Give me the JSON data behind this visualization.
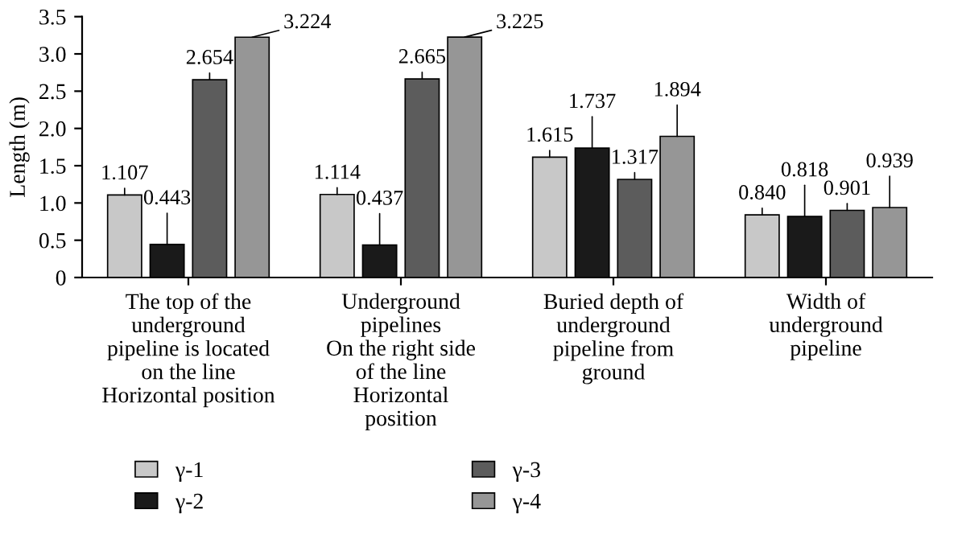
{
  "chart_data": {
    "type": "bar",
    "ylabel": "Length (m)",
    "categories": [
      "The top of the\nunderground\npipeline is located\non the line\nHorizontal position",
      "Underground\npipelines\nOn the right side\nof the line\nHorizontal\nposition",
      "Buried depth of\nunderground\npipeline from\nground",
      "Width of\nunderground\npipeline"
    ],
    "series": [
      {
        "name": "γ-1",
        "color": "#c8c8c8",
        "values": [
          1.107,
          1.114,
          1.615,
          0.84
        ],
        "value_labels": [
          "1.107",
          "1.114",
          "1.615",
          "0.840"
        ]
      },
      {
        "name": "γ-2",
        "color": "#1a1a1a",
        "values": [
          0.443,
          0.437,
          1.737,
          0.818
        ],
        "value_labels": [
          "0.443",
          "0.437",
          "1.737",
          "0.818"
        ]
      },
      {
        "name": "γ-3",
        "color": "#5c5c5c",
        "values": [
          2.654,
          2.665,
          1.317,
          0.901
        ],
        "value_labels": [
          "2.654",
          "2.665",
          "1.317",
          "0.901"
        ]
      },
      {
        "name": "γ-4",
        "color": "#969696",
        "values": [
          3.224,
          3.225,
          1.894,
          0.939
        ],
        "value_labels": [
          "3.224",
          "3.225",
          "1.894",
          "0.939"
        ]
      }
    ],
    "ylim": [
      0,
      3.5
    ],
    "yticks": [
      0,
      {
        "value": 0.5,
        "label": "0.5"
      },
      {
        "value": 1.0,
        "label": "1.0"
      },
      {
        "value": 1.5,
        "label": "1.5"
      },
      {
        "value": 2.0,
        "label": "2.0"
      },
      {
        "value": 2.5,
        "label": "2.5"
      },
      {
        "value": 3.0,
        "label": "3.0"
      },
      {
        "value": 3.5,
        "label": "3.5"
      }
    ],
    "grid": false,
    "legend": "bottom"
  }
}
